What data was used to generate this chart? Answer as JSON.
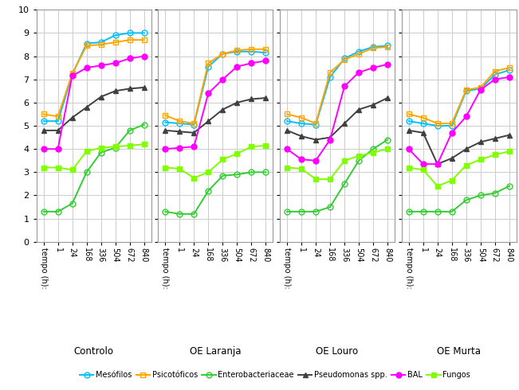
{
  "x_labels": [
    "tempo (h):",
    "1",
    "24",
    "168",
    "336",
    "504",
    "672",
    "840"
  ],
  "x_positions": [
    0,
    1,
    2,
    3,
    4,
    5,
    6,
    7
  ],
  "panels": [
    "Controlo",
    "OE Laranja",
    "OE Louro",
    "OE Murta"
  ],
  "series": {
    "Mesófilos": {
      "color": "#00bfff",
      "marker": "o",
      "markerfacecolor": "none",
      "markersize": 5,
      "linewidth": 1.4,
      "data": {
        "Controlo": [
          5.2,
          5.2,
          7.2,
          8.55,
          8.6,
          8.9,
          9.0,
          9.0
        ],
        "OE Laranja": [
          5.15,
          5.1,
          5.05,
          7.55,
          8.1,
          8.2,
          8.2,
          8.15
        ],
        "OE Louro": [
          5.2,
          5.1,
          5.05,
          7.1,
          7.9,
          8.2,
          8.4,
          8.45
        ],
        "OE Murta": [
          5.2,
          5.1,
          5.0,
          5.0,
          6.5,
          6.6,
          7.2,
          7.4
        ]
      }
    },
    "Psicotóficos": {
      "color": "#ffa500",
      "marker": "s",
      "markerfacecolor": "none",
      "markersize": 5,
      "linewidth": 1.4,
      "data": {
        "Controlo": [
          5.5,
          5.4,
          7.25,
          8.45,
          8.5,
          8.6,
          8.7,
          8.7
        ],
        "OE Laranja": [
          5.45,
          5.2,
          5.1,
          7.7,
          8.1,
          8.25,
          8.3,
          8.3
        ],
        "OE Louro": [
          5.5,
          5.35,
          5.1,
          7.3,
          7.85,
          8.1,
          8.35,
          8.4
        ],
        "OE Murta": [
          5.5,
          5.35,
          5.1,
          5.1,
          6.55,
          6.65,
          7.35,
          7.5
        ]
      }
    },
    "Enterobacteriaceae": {
      "color": "#32cd32",
      "marker": "o",
      "markerfacecolor": "none",
      "markersize": 5,
      "linewidth": 1.4,
      "data": {
        "Controlo": [
          1.3,
          1.3,
          1.65,
          3.0,
          3.85,
          4.05,
          4.8,
          5.05
        ],
        "OE Laranja": [
          1.3,
          1.2,
          1.2,
          2.2,
          2.85,
          2.9,
          3.0,
          3.0
        ],
        "OE Louro": [
          1.3,
          1.3,
          1.3,
          1.5,
          2.5,
          3.5,
          4.0,
          4.4
        ],
        "OE Murta": [
          1.3,
          1.3,
          1.3,
          1.3,
          1.8,
          2.0,
          2.1,
          2.4
        ]
      }
    },
    "Pseudomonas spp.": {
      "color": "#404040",
      "marker": "^",
      "markerfacecolor": "#404040",
      "markersize": 5,
      "linewidth": 1.4,
      "data": {
        "Controlo": [
          4.8,
          4.8,
          5.35,
          5.8,
          6.25,
          6.5,
          6.6,
          6.65
        ],
        "OE Laranja": [
          4.8,
          4.75,
          4.7,
          5.2,
          5.7,
          6.0,
          6.15,
          6.2
        ],
        "OE Louro": [
          4.8,
          4.55,
          4.4,
          4.5,
          5.1,
          5.7,
          5.9,
          6.2
        ],
        "OE Murta": [
          4.8,
          4.7,
          3.35,
          3.6,
          4.0,
          4.3,
          4.45,
          4.6
        ]
      }
    },
    "BAL": {
      "color": "#ff00ff",
      "marker": "o",
      "markerfacecolor": "#ff00ff",
      "markersize": 5,
      "linewidth": 1.4,
      "data": {
        "Controlo": [
          4.0,
          4.0,
          7.15,
          7.5,
          7.6,
          7.7,
          7.9,
          8.0
        ],
        "OE Laranja": [
          4.0,
          4.05,
          4.1,
          6.4,
          7.0,
          7.55,
          7.7,
          7.8
        ],
        "OE Louro": [
          4.0,
          3.55,
          3.5,
          4.4,
          6.7,
          7.3,
          7.5,
          7.65
        ],
        "OE Murta": [
          4.0,
          3.35,
          3.35,
          4.7,
          5.4,
          6.55,
          7.0,
          7.1
        ]
      }
    },
    "Fungos": {
      "color": "#7fff00",
      "marker": "s",
      "markerfacecolor": "#7fff00",
      "markersize": 5,
      "linewidth": 1.4,
      "data": {
        "Controlo": [
          3.2,
          3.2,
          3.1,
          3.9,
          4.05,
          4.1,
          4.15,
          4.2
        ],
        "OE Laranja": [
          3.2,
          3.15,
          2.75,
          3.0,
          3.55,
          3.8,
          4.1,
          4.15
        ],
        "OE Louro": [
          3.2,
          3.15,
          2.7,
          2.7,
          3.5,
          3.7,
          3.85,
          4.0
        ],
        "OE Murta": [
          3.2,
          3.1,
          2.4,
          2.65,
          3.3,
          3.55,
          3.75,
          3.9
        ]
      }
    }
  },
  "ylim": [
    0,
    10
  ],
  "yticks": [
    0,
    1,
    2,
    3,
    4,
    5,
    6,
    7,
    8,
    9,
    10
  ],
  "background_color": "#ffffff",
  "grid_color": "#cccccc"
}
